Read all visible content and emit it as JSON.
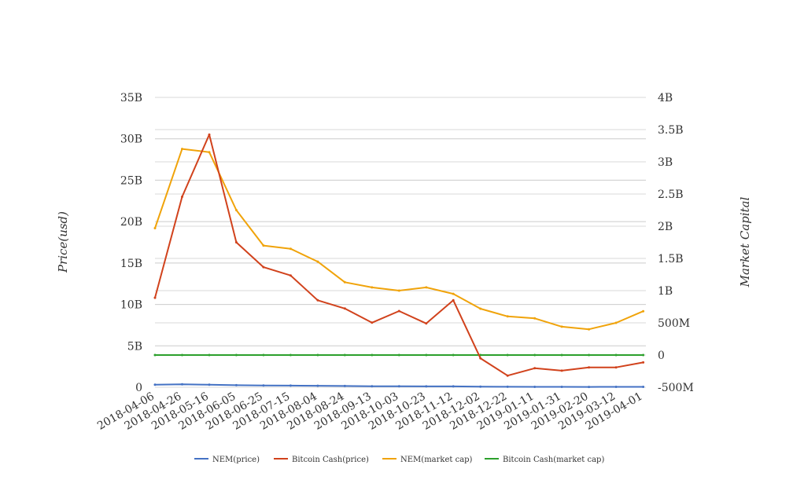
{
  "chart_data": {
    "type": "line",
    "title": "",
    "ylabel_left": "Price(usd)",
    "ylabel_right": "Market Capital",
    "x_dates": [
      "2018-04-06",
      "2018-04-26",
      "2018-05-16",
      "2018-06-05",
      "2018-06-25",
      "2018-07-15",
      "2018-08-04",
      "2018-08-24",
      "2018-09-13",
      "2018-10-03",
      "2018-10-23",
      "2018-11-12",
      "2018-12-02",
      "2018-12-22",
      "2019-01-11",
      "2019-01-31",
      "2019-02-20",
      "2019-03-12",
      "2019-04-01"
    ],
    "x_tick_labels": [
      "2018-04-06",
      "2018-04-26",
      "2018-05-16",
      "2018-06-05",
      "2018-06-25",
      "2018-07-15",
      "2018-08-04",
      "2018-08-24",
      "2018-09-13",
      "2018-10-03",
      "2018-10-23",
      "2018-11-12",
      "2018-12-02",
      "2018-12-22",
      "2019-01-11",
      "2019-01-31",
      "2019-02-20",
      "2019-03-12",
      "2019-04-01"
    ],
    "x_range": [
      "2018-04-06",
      "2019-04-03"
    ],
    "y_left_ticks": [
      "0",
      "5B",
      "10B",
      "15B",
      "20B",
      "25B",
      "30B",
      "35B"
    ],
    "y_left_range": [
      0,
      35
    ],
    "y_left_unit": "B",
    "y_right_ticks": [
      "-500M",
      "0",
      "500M",
      "1B",
      "1.5B",
      "2B",
      "2.5B",
      "3B",
      "3.5B",
      "4B"
    ],
    "y_right_range": [
      -0.5,
      4
    ],
    "y_right_unit": "B",
    "grid": true,
    "legend_position": "bottom",
    "series": [
      {
        "name": "NEM(price)",
        "axis": "left",
        "color": "#4472c4",
        "values": [
          0.3,
          0.35,
          0.3,
          0.25,
          0.22,
          0.2,
          0.18,
          0.15,
          0.12,
          0.11,
          0.1,
          0.1,
          0.08,
          0.06,
          0.05,
          0.05,
          0.04,
          0.05,
          0.05
        ]
      },
      {
        "name": "Bitcoin Cash(price)",
        "axis": "left",
        "color": "#d1421c",
        "values": [
          10.8,
          23.0,
          30.5,
          17.5,
          14.5,
          13.5,
          10.5,
          9.5,
          7.8,
          9.2,
          7.7,
          10.5,
          3.5,
          1.4,
          2.3,
          2.0,
          2.4,
          2.4,
          3.0
        ]
      },
      {
        "name": "NEM(market cap)",
        "axis": "right",
        "color": "#f0a30a",
        "values": [
          1.97,
          3.2,
          3.15,
          2.25,
          1.7,
          1.65,
          1.45,
          1.13,
          1.05,
          1.0,
          1.05,
          0.95,
          0.72,
          0.6,
          0.57,
          0.44,
          0.4,
          0.5,
          0.68
        ]
      },
      {
        "name": "Bitcoin Cash(market cap)",
        "axis": "right",
        "color": "#2ca02c",
        "values": [
          0.0,
          0.0,
          0.0,
          0.0,
          0.0,
          0.0,
          0.0,
          0.0,
          0.0,
          0.0,
          0.0,
          0.0,
          0.0,
          0.0,
          0.0,
          0.0,
          0.0,
          0.0,
          0.0
        ]
      }
    ]
  }
}
